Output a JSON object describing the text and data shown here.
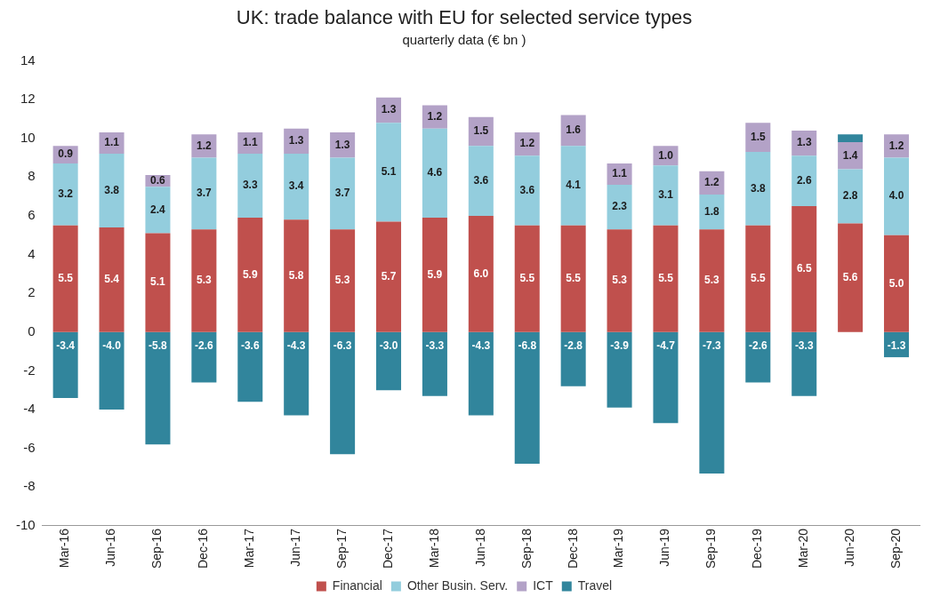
{
  "chart_data": {
    "type": "bar",
    "title": "UK: trade balance with EU for selected service types",
    "subtitle": "quarterly data (€ bn )",
    "stacked": true,
    "grid": false,
    "legend": "bottom",
    "categories": [
      "Mar-16",
      "Jun-16",
      "Sep-16",
      "Dec-16",
      "Mar-17",
      "Jun-17",
      "Sep-17",
      "Dec-17",
      "Mar-18",
      "Jun-18",
      "Sep-18",
      "Dec-18",
      "Mar-19",
      "Jun-19",
      "Sep-19",
      "Dec-19",
      "Mar-20",
      "Jun-20",
      "Sep-20"
    ],
    "ylim": [
      -10,
      14
    ],
    "yticks": [
      -10,
      -8,
      -6,
      -4,
      -2,
      0,
      2,
      4,
      6,
      8,
      10,
      12,
      14
    ],
    "series": [
      {
        "name": "Financial",
        "color": "#c0504d",
        "values": [
          5.5,
          5.4,
          5.1,
          5.3,
          5.9,
          5.8,
          5.3,
          5.7,
          5.9,
          6.0,
          5.5,
          5.5,
          5.3,
          5.5,
          5.3,
          5.5,
          6.5,
          5.6,
          5.0
        ],
        "value_labels": [
          "5.5",
          "5.4",
          "5.1",
          "5.3",
          "5.9",
          "5.8",
          "5.3",
          "5.7",
          "5.9",
          "6.0",
          "5.5",
          "5.5",
          "5.3",
          "5.5",
          "5.3",
          "5.5",
          "6.5",
          "5.6",
          "5.0"
        ]
      },
      {
        "name": "Other Busin. Serv.",
        "color": "#93cddd",
        "values": [
          3.2,
          3.8,
          2.4,
          3.7,
          3.3,
          3.4,
          3.7,
          5.1,
          4.6,
          3.6,
          3.6,
          4.1,
          2.3,
          3.1,
          1.8,
          3.8,
          2.6,
          2.8,
          4.0
        ],
        "value_labels": [
          "3.2",
          "3.8",
          "2.4",
          "3.7",
          "3.3",
          "3.4",
          "3.7",
          "5.1",
          "4.6",
          "3.6",
          "3.6",
          "4.1",
          "2.3",
          "3.1",
          "1.8",
          "3.8",
          "2.6",
          "2.8",
          "4.0"
        ]
      },
      {
        "name": "ICT",
        "color": "#b3a2c7",
        "values": [
          0.9,
          1.1,
          0.6,
          1.2,
          1.1,
          1.3,
          1.3,
          1.3,
          1.2,
          1.5,
          1.2,
          1.6,
          1.1,
          1.0,
          1.2,
          1.5,
          1.3,
          1.4,
          1.2
        ],
        "value_labels": [
          "0.9",
          "1.1",
          "0.6",
          "1.2",
          "1.1",
          "1.3",
          "1.3",
          "1.3",
          "1.2",
          "1.5",
          "1.2",
          "1.6",
          "1.1",
          "1.0",
          "1.2",
          "1.5",
          "1.3",
          "1.4",
          "1.2"
        ]
      },
      {
        "name": "Travel",
        "color": "#31859c",
        "values": [
          -3.4,
          -4.0,
          -5.8,
          -2.6,
          -3.6,
          -4.3,
          -6.3,
          -3.0,
          -3.3,
          -4.3,
          -6.8,
          -2.8,
          -3.9,
          -4.7,
          -7.3,
          -2.6,
          -3.3,
          0.4,
          -1.3
        ],
        "value_labels": [
          "-3.4",
          "-4.0",
          "-5.8",
          "-2.6",
          "-3.6",
          "-4.3",
          "-6.3",
          "-3.0",
          "-3.3",
          "-4.3",
          "-6.8",
          "-2.8",
          "-3.9",
          "-4.7",
          "-7.3",
          "-2.6",
          "-3.3",
          null,
          "-1.3"
        ]
      }
    ]
  }
}
